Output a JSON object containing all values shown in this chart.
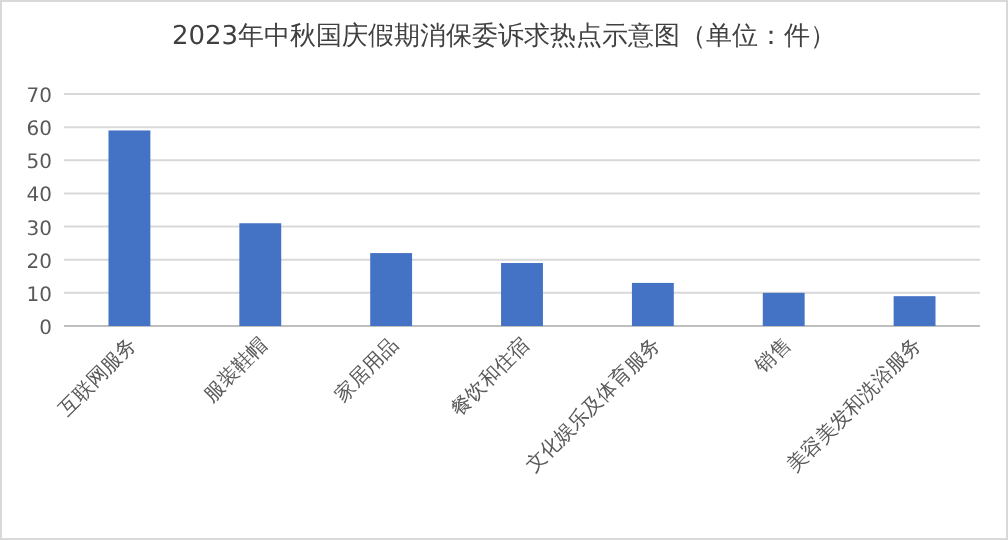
{
  "chart_data": {
    "type": "bar",
    "title": "2023年中秋国庆假期消保委诉求热点示意图（单位：件）",
    "categories": [
      "互联网服务",
      "服装鞋帽",
      "家居用品",
      "餐饮和住宿",
      "文化娱乐及体育服务",
      "销售",
      "美容美发和洗浴服务"
    ],
    "values": [
      59,
      31,
      22,
      19,
      13,
      10,
      9
    ],
    "color": "#4472c4",
    "ylim": [
      0,
      70
    ],
    "yticks": [
      0,
      10,
      20,
      30,
      40,
      50,
      60,
      70
    ],
    "grid": "y"
  }
}
